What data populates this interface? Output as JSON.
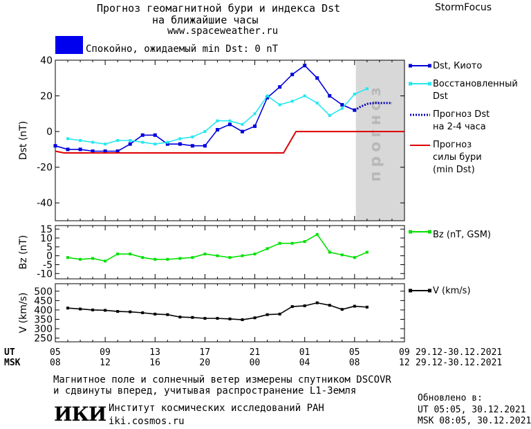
{
  "header": {
    "title_line1": "Прогноз геомагнитной бури и индекса Dst",
    "title_line2": "на ближайшие часы",
    "site": "www.spaceweather.ru",
    "brand": "StormFocus",
    "status_text": "Спокойно, ожидаемый min Dst: 0 nT",
    "status_color": "#0000ee"
  },
  "legend": {
    "dst_kyoto": "Dst, Киото",
    "restored_1": "Восстановленный",
    "restored_2": "Dst",
    "forecast_1": "Прогноз Dst",
    "forecast_2": "на 2-4 часа",
    "storm_1": "Прогноз",
    "storm_2": "силы бури",
    "storm_3": "(min Dst)",
    "bz": "Bz (nT, GSM)",
    "v": "V (km/s)",
    "forecast_zone": "прогноз"
  },
  "time_axis": {
    "ut_label": "UT",
    "msk_label": "MSK",
    "ut_ticks": [
      "05",
      "09",
      "13",
      "17",
      "21",
      "01",
      "05",
      "09"
    ],
    "msk_ticks": [
      "08",
      "12",
      "16",
      "20",
      "00",
      "04",
      "08",
      "12"
    ],
    "ut_range": "29.12-30.12.2021",
    "msk_range": "29.12-30.12.2021"
  },
  "footer": {
    "note_1": "Магнитное поле и солнечный ветер измерены спутником DSCOVR",
    "note_2": "и сдвинуты вперед, учитывая распространение L1-Земля",
    "logo": "ИКИ",
    "institute": "Институт космических исследований РАН",
    "institute_site": "iki.cosmos.ru",
    "updated_label": "Обновлено в:",
    "updated_ut": "UT  05:05, 30.12.2021",
    "updated_msk": "MSK 08:05, 30.12.2021"
  },
  "colors": {
    "dst": "#0000dd",
    "restored": "#22e8f0",
    "forecast": "#0000bb",
    "storm": "#dd0000",
    "bz": "#00e000",
    "v": "#000000",
    "forecast_zone": "#d8d8d8"
  },
  "chart_data": [
    {
      "type": "line",
      "ylabel": "Dst (nT)",
      "ylim": [
        -50,
        40
      ],
      "yticks": [
        -40,
        -20,
        0,
        20,
        40
      ],
      "xlim": [
        0,
        28
      ],
      "forecast_zone": [
        24.1,
        28
      ],
      "series": [
        {
          "name": "Dst, Киото",
          "x": [
            0,
            1,
            2,
            3,
            4,
            5,
            6,
            7,
            8,
            9,
            10,
            11,
            12,
            13,
            14,
            15,
            16,
            17,
            18,
            19,
            20,
            21,
            22,
            23,
            24
          ],
          "values": [
            -8,
            -10,
            -10,
            -11,
            -11,
            -11,
            -7,
            -2,
            -2,
            -7,
            -7,
            -8,
            -8,
            1,
            4,
            0,
            3,
            19,
            25,
            32,
            37,
            30,
            20,
            15,
            12
          ]
        },
        {
          "name": "Восстановленный Dst",
          "x": [
            1,
            2,
            3,
            4,
            5,
            6,
            7,
            8,
            9,
            10,
            11,
            12,
            13,
            14,
            15,
            16,
            17,
            18,
            19,
            20,
            21,
            22,
            23,
            24,
            25
          ],
          "values": [
            -4,
            -5,
            -6,
            -7,
            -5,
            -5,
            -6,
            -7,
            -6,
            -4,
            -3,
            0,
            6,
            6,
            4,
            10,
            20,
            15,
            17,
            20,
            16,
            9,
            13,
            21,
            24
          ]
        },
        {
          "name": "Прогноз Dst на 2-4 часа",
          "x": [
            24,
            24.5,
            25,
            25.5,
            26,
            27
          ],
          "values": [
            12,
            14,
            15.5,
            16,
            16,
            16
          ]
        },
        {
          "name": "Прогноз силы бури (min Dst)",
          "x": [
            0,
            0.7,
            18.3,
            19.3,
            28
          ],
          "values": [
            -11,
            -12,
            -12,
            0,
            0
          ]
        }
      ]
    },
    {
      "type": "line",
      "ylabel": "Bz (nT)",
      "ylim": [
        -13,
        17
      ],
      "yticks": [
        -10,
        -5,
        0,
        5,
        10,
        15
      ],
      "xlim": [
        0,
        28
      ],
      "series": [
        {
          "name": "Bz (nT, GSM)",
          "x": [
            1,
            2,
            3,
            4,
            5,
            6,
            7,
            8,
            9,
            10,
            11,
            12,
            13,
            14,
            15,
            16,
            17,
            18,
            19,
            20,
            21,
            22,
            23,
            24,
            25
          ],
          "values": [
            -1,
            -2,
            -1.5,
            -3,
            1,
            1,
            -1,
            -2,
            -2,
            -1.5,
            -1,
            1,
            0,
            -1,
            0,
            1,
            4,
            7,
            7,
            8,
            12,
            2,
            0.5,
            -1,
            2
          ]
        }
      ]
    },
    {
      "type": "line",
      "ylabel": "V (km/s)",
      "ylim": [
        230,
        540
      ],
      "yticks": [
        250,
        300,
        350,
        400,
        450,
        500
      ],
      "xlim": [
        0,
        28
      ],
      "series": [
        {
          "name": "V (km/s)",
          "x": [
            1,
            2,
            3,
            4,
            5,
            6,
            7,
            8,
            9,
            10,
            11,
            12,
            13,
            14,
            15,
            16,
            17,
            18,
            19,
            20,
            21,
            22,
            23,
            24,
            25
          ],
          "values": [
            410,
            405,
            400,
            398,
            392,
            390,
            385,
            378,
            375,
            362,
            360,
            355,
            355,
            352,
            348,
            358,
            375,
            378,
            418,
            422,
            438,
            425,
            403,
            420,
            415
          ]
        }
      ]
    }
  ]
}
